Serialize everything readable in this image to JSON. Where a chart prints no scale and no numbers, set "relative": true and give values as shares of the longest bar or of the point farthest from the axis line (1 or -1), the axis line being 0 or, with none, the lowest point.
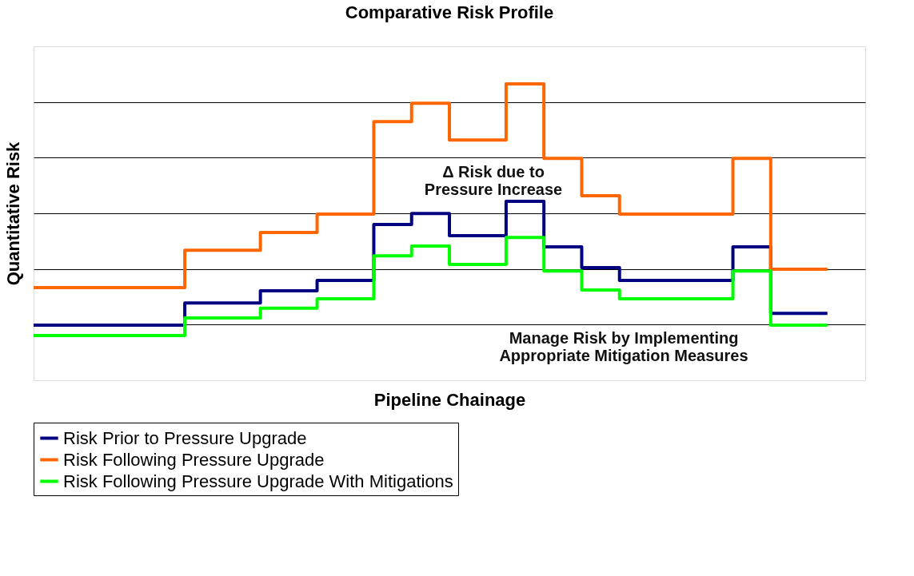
{
  "chart_data": {
    "type": "step",
    "title": "Comparative Risk Profile",
    "xlabel": "Pipeline Chainage",
    "ylabel": "Quantitative Risk",
    "relative": true,
    "grid": "y",
    "legend": "bottom",
    "line_style": "solid",
    "marker": "none",
    "categories": [
      null,
      null,
      null,
      null,
      null,
      null,
      null,
      null,
      null,
      null,
      null,
      null,
      null,
      null,
      null,
      null,
      null,
      null,
      null,
      null,
      null,
      null,
      null,
      null,
      null,
      null,
      null,
      null,
      null,
      null,
      null,
      null,
      null,
      null,
      null,
      null,
      null,
      null,
      null,
      null,
      null,
      null,
      null
    ],
    "series": [
      {
        "name": "Risk Prior to Pressure Upgrade",
        "color": "#000080",
        "values": [
          0.186,
          0.186,
          0.186,
          0.186,
          0.186,
          0.186,
          0.186,
          0.186,
          0.261,
          0.261,
          0.261,
          0.261,
          0.302,
          0.302,
          0.302,
          0.337,
          0.337,
          0.337,
          0.526,
          0.526,
          0.563,
          0.563,
          0.488,
          0.488,
          0.488,
          0.604,
          0.604,
          0.45,
          0.45,
          0.38,
          0.38,
          0.337,
          0.337,
          0.337,
          0.337,
          0.337,
          0.337,
          0.45,
          0.45,
          0.226,
          0.226,
          0.226,
          0.226
        ]
      },
      {
        "name": "Risk Following Pressure Upgrade",
        "color": "#ff6600",
        "values": [
          0.313,
          0.313,
          0.313,
          0.313,
          0.313,
          0.313,
          0.313,
          0.313,
          0.439,
          0.439,
          0.439,
          0.439,
          0.499,
          0.499,
          0.499,
          0.561,
          0.561,
          0.561,
          0.873,
          0.873,
          0.935,
          0.935,
          0.811,
          0.811,
          0.811,
          1,
          1,
          0.749,
          0.749,
          0.623,
          0.623,
          0.561,
          0.561,
          0.561,
          0.561,
          0.561,
          0.561,
          0.749,
          0.749,
          0.375,
          0.375,
          0.375,
          0.375
        ]
      },
      {
        "name": "Risk Following Pressure Upgrade With Mitigations",
        "color": "#00ff00",
        "values": [
          0.151,
          0.151,
          0.151,
          0.151,
          0.151,
          0.151,
          0.151,
          0.151,
          0.21,
          0.21,
          0.21,
          0.21,
          0.243,
          0.243,
          0.243,
          0.275,
          0.275,
          0.275,
          0.42,
          0.42,
          0.453,
          0.453,
          0.391,
          0.391,
          0.391,
          0.482,
          0.482,
          0.369,
          0.369,
          0.305,
          0.305,
          0.275,
          0.275,
          0.275,
          0.275,
          0.275,
          0.275,
          0.369,
          0.369,
          0.186,
          0.186,
          0.186,
          0.186
        ]
      }
    ],
    "annotations": [
      "Δ Risk due to\nPressure Increase",
      "Manage Risk by Implementing\nAppropriate Mitigation Measures"
    ]
  }
}
